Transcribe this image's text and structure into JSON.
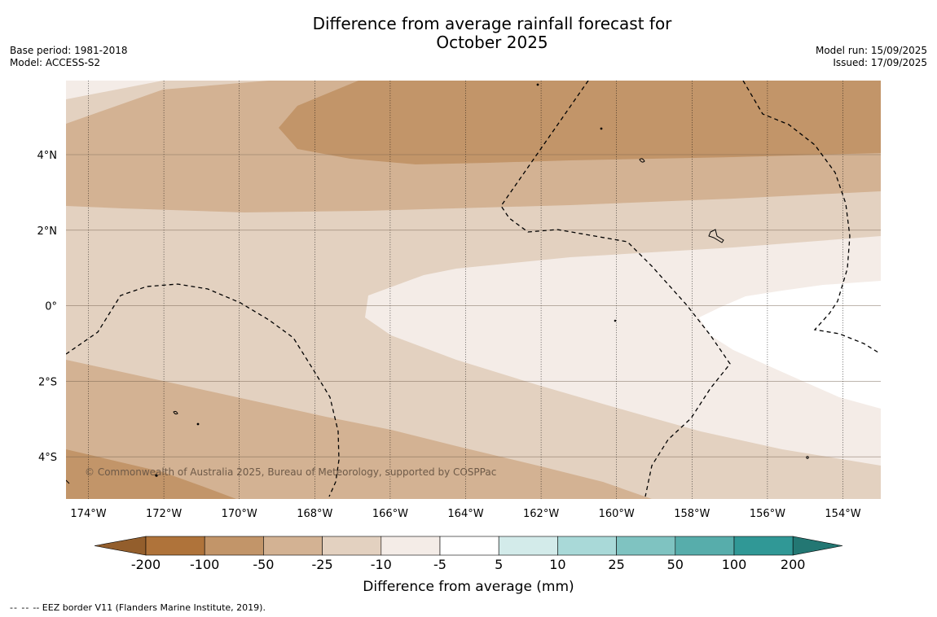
{
  "title_line1": "Difference from average rainfall forecast for",
  "title_line2": "October 2025",
  "meta_left": [
    "Base period: 1981-2018",
    "Model: ACCESS-S2"
  ],
  "meta_right": [
    "Model run: 15/09/2025",
    "Issued: 17/09/2025"
  ],
  "copyright": "© Commonwealth of Australia 2025, Bureau of Meteorology, supported by COSPPac",
  "lon_ticks": [
    "174°W",
    "172°W",
    "170°W",
    "168°W",
    "166°W",
    "164°W",
    "162°W",
    "160°W",
    "158°W",
    "156°W",
    "154°W"
  ],
  "lat_ticks": [
    "4°N",
    "2°N",
    "0°",
    "2°S",
    "4°S"
  ],
  "colorbar": {
    "label": "Difference from average (mm)",
    "tick_labels": [
      "-200",
      "-100",
      "-50",
      "-25",
      "-10",
      "-5",
      "5",
      "10",
      "25",
      "50",
      "100",
      "200"
    ],
    "colors": [
      "#935e2c",
      "#af733a",
      "#c29569",
      "#d3b293",
      "#e3d1c0",
      "#f4ece7",
      "#ffffff",
      "#d3ebea",
      "#a9d9d8",
      "#7fc3c1",
      "#57adab",
      "#309896",
      "#237773"
    ]
  },
  "legend_note": "-- EEZ border V11 (Flanders Marine Institute, 2019).",
  "legend_marker": "--  --"
}
